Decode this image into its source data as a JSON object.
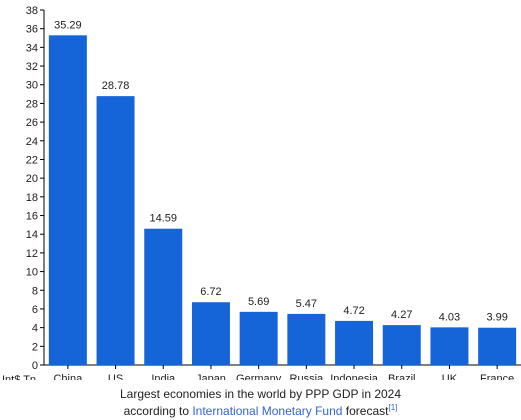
{
  "chart_data": {
    "type": "bar",
    "categories": [
      "China",
      "US",
      "India",
      "Japan",
      "Germany",
      "Russia",
      "Indonesia",
      "Brazil",
      "UK",
      "France"
    ],
    "values": [
      35.29,
      28.78,
      14.59,
      6.72,
      5.69,
      5.47,
      4.72,
      4.27,
      4.03,
      3.99
    ],
    "value_labels": [
      "35.29",
      "28.78",
      "14.59",
      "6.72",
      "5.69",
      "5.47",
      "4.72",
      "4.27",
      "4.03",
      "3.99"
    ],
    "ylabel": "Int$ Tn",
    "ylim": [
      0,
      38
    ],
    "yticks": [
      0,
      2,
      4,
      6,
      8,
      10,
      12,
      14,
      16,
      18,
      20,
      22,
      24,
      26,
      28,
      30,
      32,
      34,
      36,
      38
    ],
    "grid": false,
    "bar_color": "#1565d8"
  },
  "caption": {
    "line1": "Largest economies in the world by PPP GDP in 2024",
    "line2_prefix": "according to ",
    "line2_link": "International Monetary Fund",
    "line2_suffix": " forecast",
    "reference": "[1]"
  }
}
